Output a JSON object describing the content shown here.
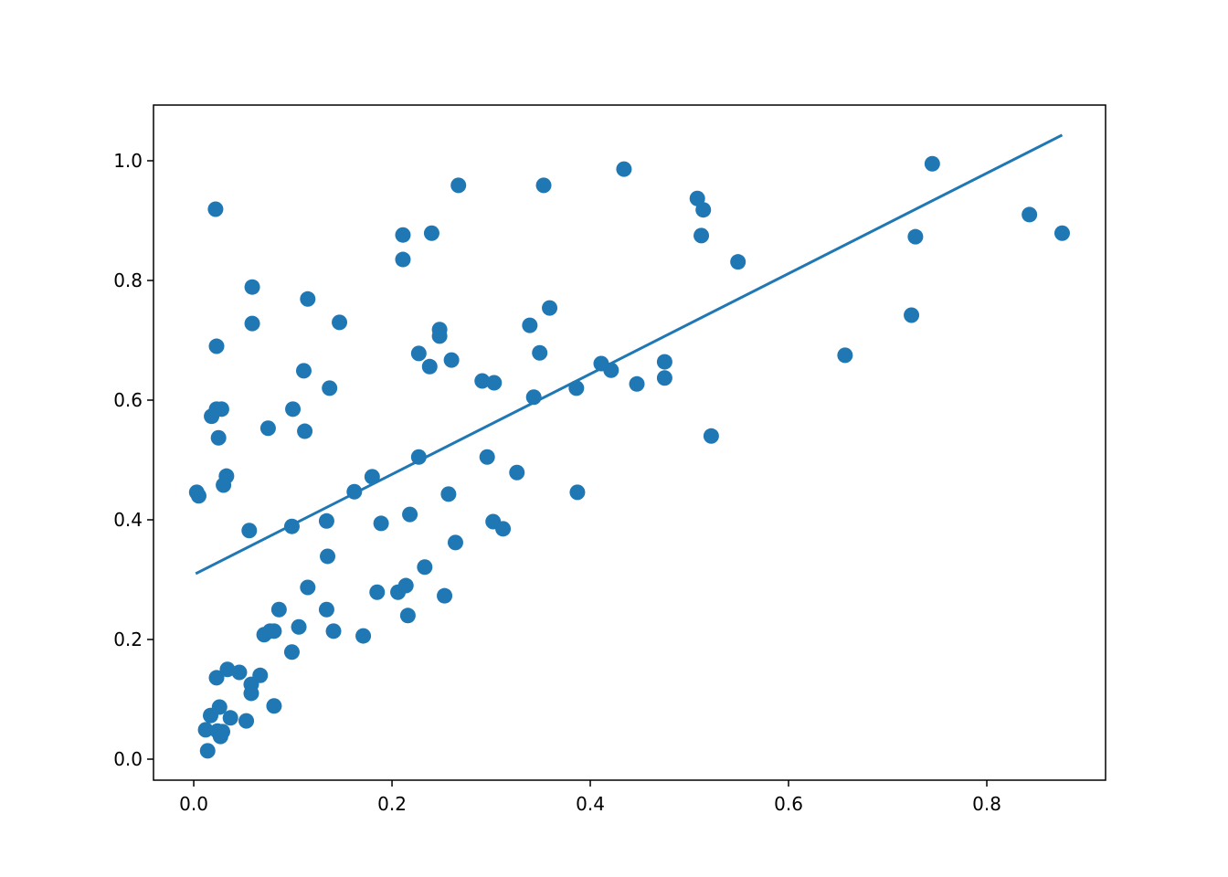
{
  "chart_data": {
    "type": "scatter",
    "x": [
      0.003,
      0.005,
      0.022,
      0.059,
      0.059,
      0.023,
      0.018,
      0.023,
      0.028,
      0.025,
      0.033,
      0.03,
      0.056,
      0.014,
      0.012,
      0.017,
      0.027,
      0.029,
      0.024,
      0.026,
      0.023,
      0.034,
      0.046,
      0.037,
      0.053,
      0.058,
      0.058,
      0.067,
      0.081,
      0.071,
      0.077,
      0.081,
      0.086,
      0.106,
      0.099,
      0.115,
      0.099,
      0.1,
      0.111,
      0.112,
      0.115,
      0.137,
      0.147,
      0.075,
      0.134,
      0.135,
      0.134,
      0.141,
      0.171,
      0.162,
      0.18,
      0.189,
      0.185,
      0.206,
      0.214,
      0.216,
      0.218,
      0.233,
      0.227,
      0.253,
      0.257,
      0.264,
      0.211,
      0.211,
      0.24,
      0.267,
      0.227,
      0.238,
      0.248,
      0.248,
      0.26,
      0.291,
      0.303,
      0.296,
      0.302,
      0.312,
      0.326,
      0.339,
      0.343,
      0.349,
      0.353,
      0.359,
      0.386,
      0.387,
      0.411,
      0.421,
      0.434,
      0.447,
      0.475,
      0.475,
      0.508,
      0.514,
      0.512,
      0.522,
      0.549,
      0.657,
      0.724,
      0.728,
      0.745,
      0.843,
      0.876
    ],
    "y": [
      0.446,
      0.44,
      0.919,
      0.789,
      0.728,
      0.69,
      0.573,
      0.585,
      0.585,
      0.537,
      0.473,
      0.458,
      0.382,
      0.014,
      0.049,
      0.073,
      0.038,
      0.046,
      0.047,
      0.087,
      0.136,
      0.15,
      0.145,
      0.069,
      0.064,
      0.125,
      0.11,
      0.14,
      0.089,
      0.208,
      0.214,
      0.214,
      0.25,
      0.221,
      0.179,
      0.287,
      0.389,
      0.585,
      0.649,
      0.548,
      0.769,
      0.62,
      0.73,
      0.553,
      0.398,
      0.339,
      0.25,
      0.214,
      0.206,
      0.447,
      0.472,
      0.394,
      0.279,
      0.279,
      0.29,
      0.24,
      0.409,
      0.321,
      0.505,
      0.273,
      0.443,
      0.362,
      0.876,
      0.835,
      0.879,
      0.959,
      0.678,
      0.656,
      0.718,
      0.707,
      0.667,
      0.632,
      0.629,
      0.505,
      0.397,
      0.385,
      0.479,
      0.725,
      0.605,
      0.679,
      0.959,
      0.754,
      0.62,
      0.446,
      0.661,
      0.65,
      0.986,
      0.627,
      0.664,
      0.637,
      0.937,
      0.918,
      0.875,
      0.54,
      0.831,
      0.675,
      0.742,
      0.873,
      0.995,
      0.91,
      0.879
    ],
    "color": "#1f77b4",
    "fit_line": {
      "x": [
        0.002,
        0.876
      ],
      "y": [
        0.31,
        1.043
      ]
    },
    "xlim": [
      -0.0406,
      0.9198
    ],
    "ylim": [
      -0.0351,
      1.0931
    ],
    "xticks": [
      {
        "value": 0,
        "label": "0.0"
      },
      0.2,
      0.4,
      0.6,
      0.8
    ],
    "yticks": [
      {
        "value": 0,
        "label": "0.0"
      },
      0.2,
      0.4,
      0.6,
      0.8,
      {
        "value": 1,
        "label": "1.0"
      }
    ]
  }
}
